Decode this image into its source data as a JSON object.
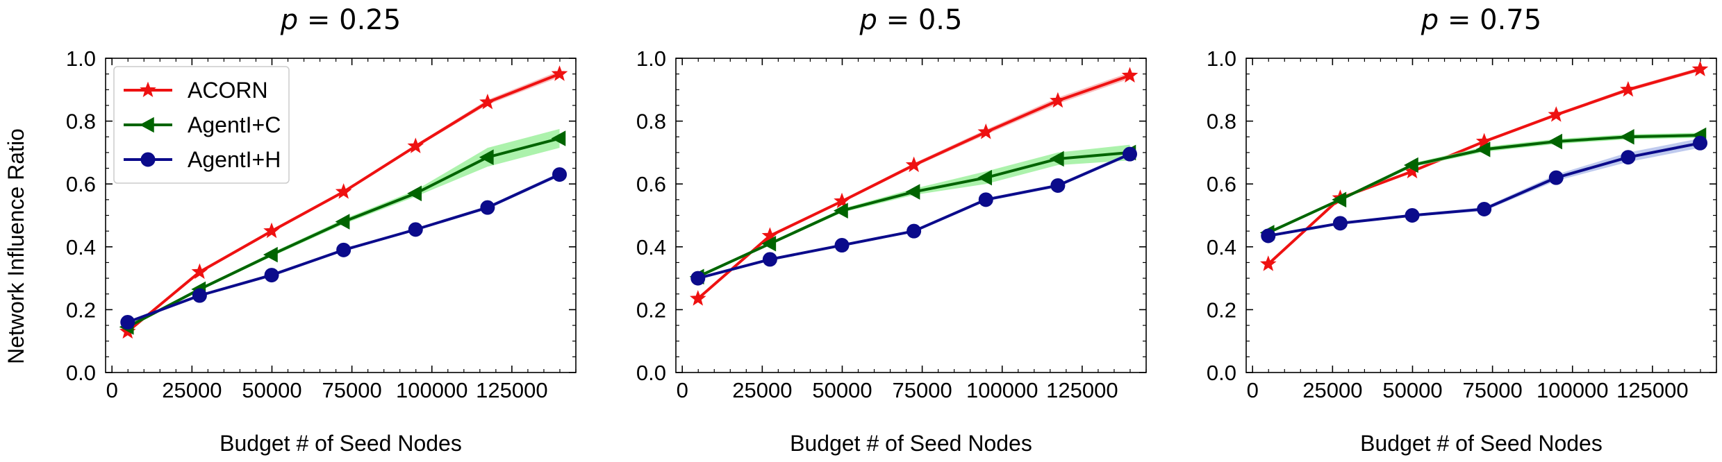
{
  "figure": {
    "ylabel": "Network Influence Ratio"
  },
  "chart_data": [
    {
      "type": "line",
      "title_lhs": "p",
      "title_rhs": "= 0.25",
      "xlabel": "Budget # of Seed Nodes",
      "ylabel": "Network Influence Ratio",
      "xlim": [
        -2000,
        145000
      ],
      "ylim": [
        0,
        1.0
      ],
      "xticks": [
        0,
        25000,
        50000,
        75000,
        100000,
        125000
      ],
      "yticks": [
        0.0,
        0.2,
        0.4,
        0.6,
        0.8,
        1.0
      ],
      "grid": false,
      "legend": "top-left",
      "x": [
        4900,
        27400,
        49900,
        72400,
        94900,
        117400,
        139900
      ],
      "series": [
        {
          "name": "ACORN",
          "color": "#ee1111",
          "band_color": "#f7a8a8",
          "marker": "star",
          "values": [
            0.13,
            0.32,
            0.45,
            0.575,
            0.72,
            0.86,
            0.95
          ],
          "band": [
            0.005,
            0.005,
            0.005,
            0.005,
            0.005,
            0.008,
            0.01
          ]
        },
        {
          "name": "AgentI+C",
          "color": "#006400",
          "band_color": "#90ee90",
          "marker": "triangle-left",
          "values": [
            0.145,
            0.265,
            0.375,
            0.48,
            0.57,
            0.685,
            0.745
          ],
          "band": [
            0.005,
            0.005,
            0.006,
            0.008,
            0.01,
            0.03,
            0.03
          ]
        },
        {
          "name": "AgentI+H",
          "color": "#0b0b8b",
          "band_color": "#aab8e8",
          "marker": "circle",
          "values": [
            0.16,
            0.245,
            0.31,
            0.39,
            0.455,
            0.525,
            0.63
          ],
          "band": [
            0.004,
            0.004,
            0.004,
            0.004,
            0.004,
            0.005,
            0.006
          ]
        }
      ]
    },
    {
      "type": "line",
      "title_lhs": "p",
      "title_rhs": "= 0.5",
      "xlabel": "Budget # of Seed Nodes",
      "ylabel": "",
      "xlim": [
        -2000,
        145000
      ],
      "ylim": [
        0,
        1.0
      ],
      "xticks": [
        0,
        25000,
        50000,
        75000,
        100000,
        125000
      ],
      "yticks": [
        0.0,
        0.2,
        0.4,
        0.6,
        0.8,
        1.0
      ],
      "grid": false,
      "legend": "none",
      "x": [
        4900,
        27400,
        49900,
        72400,
        94900,
        117400,
        139900
      ],
      "series": [
        {
          "name": "ACORN",
          "color": "#ee1111",
          "band_color": "#f7a8a8",
          "marker": "star",
          "values": [
            0.235,
            0.435,
            0.545,
            0.66,
            0.765,
            0.865,
            0.945
          ],
          "band": [
            0.005,
            0.005,
            0.005,
            0.006,
            0.008,
            0.01,
            0.01
          ]
        },
        {
          "name": "AgentI+C",
          "color": "#006400",
          "band_color": "#90ee90",
          "marker": "triangle-left",
          "values": [
            0.305,
            0.41,
            0.515,
            0.575,
            0.62,
            0.68,
            0.7
          ],
          "band": [
            0.005,
            0.005,
            0.006,
            0.01,
            0.02,
            0.02,
            0.025
          ]
        },
        {
          "name": "AgentI+H",
          "color": "#0b0b8b",
          "band_color": "#aab8e8",
          "marker": "circle",
          "values": [
            0.3,
            0.36,
            0.405,
            0.45,
            0.55,
            0.595,
            0.695
          ],
          "band": [
            0.004,
            0.004,
            0.004,
            0.004,
            0.005,
            0.005,
            0.006
          ]
        }
      ]
    },
    {
      "type": "line",
      "title_lhs": "p",
      "title_rhs": "= 0.75",
      "xlabel": "Budget # of Seed Nodes",
      "ylabel": "",
      "xlim": [
        -2000,
        145000
      ],
      "ylim": [
        0,
        1.0
      ],
      "xticks": [
        0,
        25000,
        50000,
        75000,
        100000,
        125000
      ],
      "yticks": [
        0.0,
        0.2,
        0.4,
        0.6,
        0.8,
        1.0
      ],
      "grid": false,
      "legend": "none",
      "x": [
        4900,
        27400,
        49900,
        72400,
        94900,
        117400,
        139900
      ],
      "series": [
        {
          "name": "ACORN",
          "color": "#ee1111",
          "band_color": "#f7a8a8",
          "marker": "star",
          "values": [
            0.345,
            0.555,
            0.64,
            0.735,
            0.82,
            0.9,
            0.965
          ],
          "band": [
            0.004,
            0.004,
            0.005,
            0.005,
            0.005,
            0.006,
            0.006
          ]
        },
        {
          "name": "AgentI+C",
          "color": "#006400",
          "band_color": "#90ee90",
          "marker": "triangle-left",
          "values": [
            0.445,
            0.55,
            0.66,
            0.71,
            0.735,
            0.75,
            0.755
          ],
          "band": [
            0.005,
            0.005,
            0.006,
            0.008,
            0.008,
            0.008,
            0.008
          ]
        },
        {
          "name": "AgentI+H",
          "color": "#0b0b8b",
          "band_color": "#aab8e8",
          "marker": "circle",
          "values": [
            0.435,
            0.475,
            0.5,
            0.52,
            0.62,
            0.685,
            0.73
          ],
          "band": [
            0.004,
            0.004,
            0.004,
            0.006,
            0.01,
            0.015,
            0.015
          ]
        }
      ]
    }
  ]
}
